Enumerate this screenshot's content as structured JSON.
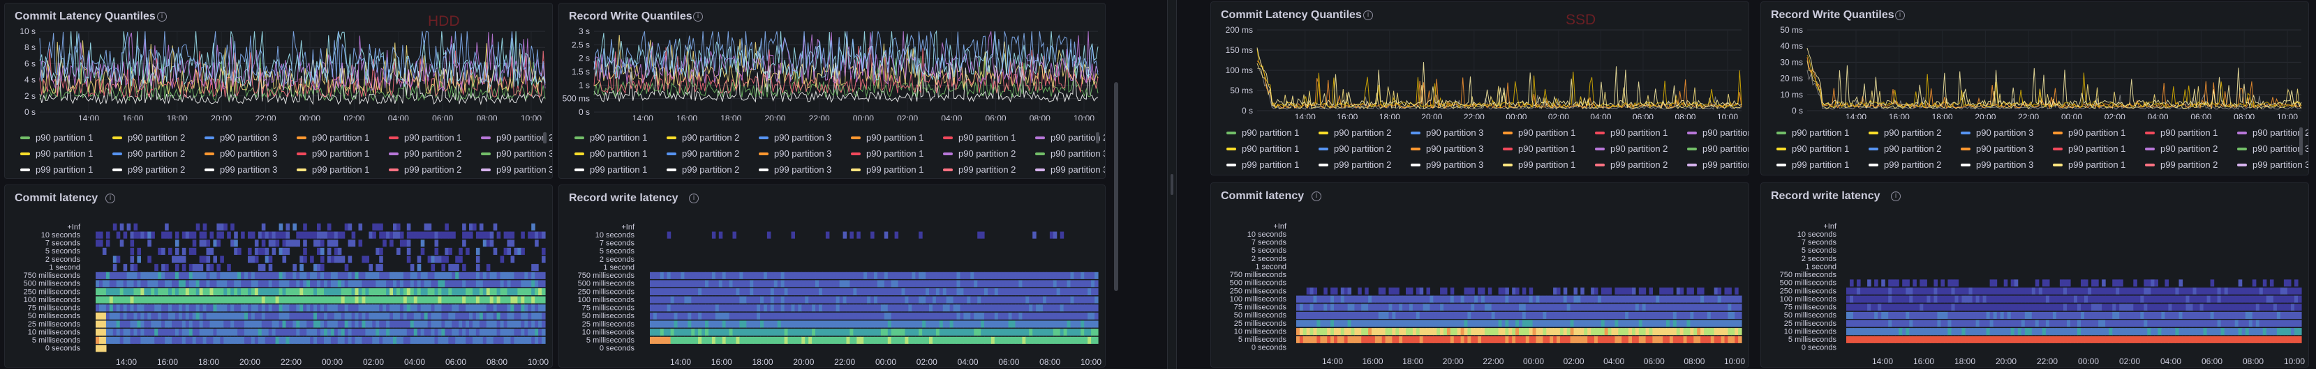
{
  "dashboards": [
    {
      "id": "hdd",
      "label": "HDD",
      "panels": {
        "quantiles_commit": {
          "title": "Commit Latency Quantiles",
          "y_ticks": [
            "10 s",
            "8 s",
            "6 s",
            "4 s",
            "2 s",
            "0 s"
          ],
          "y_max": 10
        },
        "quantiles_record": {
          "title": "Record Write Quantiles",
          "y_ticks": [
            "3 s",
            "2.5 s",
            "2 s",
            "1.5 s",
            "1 s",
            "500 ms",
            "0 s"
          ],
          "y_max": 3
        },
        "heat_commit": {
          "title": "Commit latency"
        },
        "heat_record": {
          "title": "Record write latency"
        }
      }
    },
    {
      "id": "ssd",
      "label": "SSD",
      "panels": {
        "quantiles_commit": {
          "title": "Commit Latency Quantiles",
          "y_ticks": [
            "200 ms",
            "150 ms",
            "100 ms",
            "50 ms",
            "0 s"
          ],
          "y_max": 200
        },
        "quantiles_record": {
          "title": "Record Write Quantiles",
          "y_ticks": [
            "50 ms",
            "40 ms",
            "30 ms",
            "20 ms",
            "10 ms",
            "0 s"
          ],
          "y_max": 50
        },
        "heat_commit": {
          "title": "Commit latency"
        },
        "heat_record": {
          "title": "Record write latency"
        }
      }
    }
  ],
  "x_ticks": [
    "14:00",
    "16:00",
    "18:00",
    "20:00",
    "22:00",
    "00:00",
    "02:00",
    "04:00",
    "06:00",
    "08:00",
    "10:00"
  ],
  "heatmap_buckets": [
    "+Inf",
    "10 seconds",
    "7 seconds",
    "5 seconds",
    "2 seconds",
    "1 second",
    "750 milliseconds",
    "500 milliseconds",
    "250 milliseconds",
    "100 milliseconds",
    "75 milliseconds",
    "50 milliseconds",
    "25 milliseconds",
    "10 milliseconds",
    "5 milliseconds",
    "0 seconds"
  ],
  "legend": [
    [
      {
        "name": "p90 partition 1",
        "color": "#73bf69"
      },
      {
        "name": "p90 partition 2",
        "color": "#fade2a"
      },
      {
        "name": "p90 partition 3",
        "color": "#5794f2"
      },
      {
        "name": "p90 partition 1",
        "color": "#ff9830"
      },
      {
        "name": "p90 partition 1",
        "color": "#f2495c"
      },
      {
        "name": "p90 partition 2",
        "color": "#b877d9"
      },
      {
        "name": "p90 partition 3",
        "color": "#73bf69"
      }
    ],
    [
      {
        "name": "p90 partition 1",
        "color": "#fade2a"
      },
      {
        "name": "p90 partition 2",
        "color": "#5794f2"
      },
      {
        "name": "p90 partition 3",
        "color": "#ff9830"
      },
      {
        "name": "p90 partition 1",
        "color": "#f2495c"
      },
      {
        "name": "p90 partition 2",
        "color": "#b877d9"
      },
      {
        "name": "p90 partition 3",
        "color": "#73bf69"
      }
    ],
    [
      {
        "name": "p99 partition 1",
        "color": "#ffffff"
      },
      {
        "name": "p99 partition 2",
        "color": "#ffffff"
      },
      {
        "name": "p99 partition 3",
        "color": "#ffffff"
      },
      {
        "name": "p99 partition 1",
        "color": "#ffe680"
      },
      {
        "name": "p99 partition 2",
        "color": "#ff7383"
      },
      {
        "name": "p99 partition 3",
        "color": "#d7b3ee"
      }
    ]
  ],
  "colors": {
    "bg": "#111217",
    "panel": "#181b1f",
    "heat_low": "#3b2a78",
    "heat_mid": "#2f9e9a",
    "heat_high": "#f5d57a",
    "heat_hot": "#e8553f"
  }
}
